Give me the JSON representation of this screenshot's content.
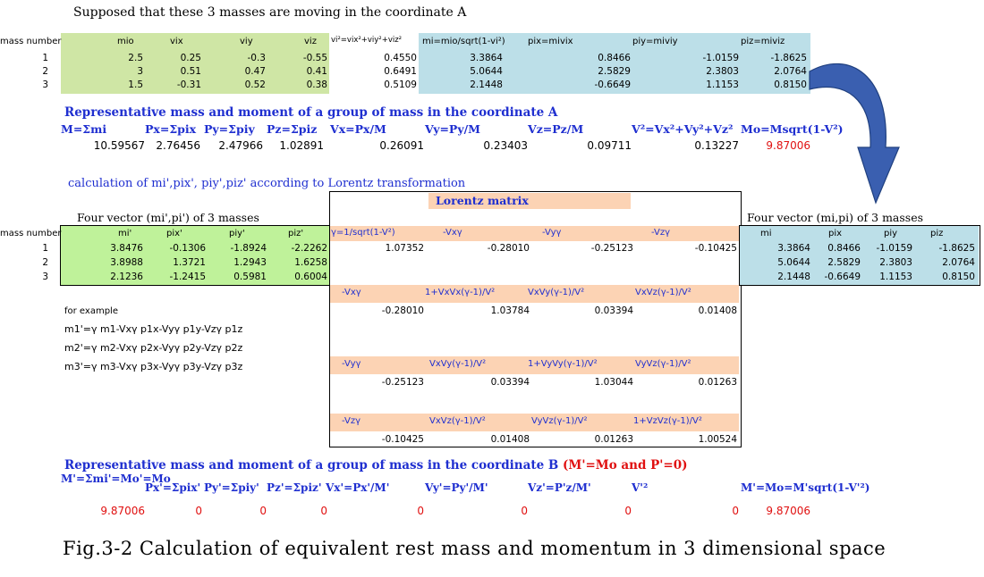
{
  "intro": "Supposed that these 3 masses are moving in the coordinate A",
  "tableA": {
    "mass_number_label": "mass number",
    "headers": [
      "mio",
      "vix",
      "viy",
      "viz",
      "vi²=vix²+viy²+viz²",
      "mi=mio/sqrt(1-vi²)",
      "pix=mivix",
      "piy=miviy",
      "piz=miviz"
    ],
    "rows": [
      {
        "n": "1",
        "mio": "2.5",
        "vix": "0.25",
        "viy": "-0.3",
        "viz": "-0.55",
        "v2": "0.4550",
        "mi": "3.3864",
        "pix": "0.8466",
        "piy": "-1.0159",
        "piz": "-1.8625"
      },
      {
        "n": "2",
        "mio": "3",
        "vix": "0.51",
        "viy": "0.47",
        "viz": "0.41",
        "v2": "0.6491",
        "mi": "5.0644",
        "pix": "2.5829",
        "piy": "2.3803",
        "piz": "2.0764"
      },
      {
        "n": "3",
        "mio": "1.5",
        "vix": "-0.31",
        "viy": "0.52",
        "viz": "0.38",
        "v2": "0.5109",
        "mi": "2.1448",
        "pix": "-0.6649",
        "piy": "1.1153",
        "piz": "0.8150"
      }
    ]
  },
  "repA": {
    "title": "Representative mass and moment of a group of mass in the coordinate A",
    "headers": [
      "M=Σmi",
      "Px=Σpix",
      "Py=Σpiy",
      "Pz=Σpiz",
      "Vx=Px/M",
      "Vy=Py/M",
      "Vz=Pz/M",
      "V²=Vx²+Vy²+Vz²",
      "Mo=Msqrt(1-V²)"
    ],
    "values": [
      "10.59567",
      "2.76456",
      "2.47966",
      "1.02891",
      "0.26091",
      "0.23403",
      "0.09711",
      "0.13227",
      "9.87006"
    ]
  },
  "calc_title": "calculation of mi',pix', piy',piz' according to Lorentz transformation",
  "lorentz_title": "Lorentz matrix",
  "left_fv": {
    "title": "Four vector (mi',pi') of  3 masses",
    "mass_number_label": "mass number",
    "headers": [
      "mi'",
      "pix'",
      "piy'",
      "piz'"
    ],
    "rows": [
      [
        "1",
        "3.8476",
        "-0.1306",
        "-1.8924",
        "-2.2262"
      ],
      [
        "2",
        "3.8988",
        "1.3721",
        "1.2943",
        "1.6258"
      ],
      [
        "3",
        "2.1236",
        "-1.2415",
        "0.5981",
        "0.6004"
      ]
    ]
  },
  "right_fv": {
    "title": "Four vector (mi,pi) of  3 masses",
    "headers": [
      "mi",
      "pix",
      "piy",
      "piz"
    ],
    "rows": [
      [
        "3.3864",
        "0.8466",
        "-1.0159",
        "-1.8625"
      ],
      [
        "5.0644",
        "2.5829",
        "2.3803",
        "2.0764"
      ],
      [
        "2.1448",
        "-0.6649",
        "1.1153",
        "0.8150"
      ]
    ]
  },
  "matrix": [
    {
      "labels": [
        "γ=1/sqrt(1-V²)",
        "-Vxγ",
        "-Vyγ",
        "-Vzγ"
      ],
      "values": [
        "1.07352",
        "-0.28010",
        "-0.25123",
        "-0.10425"
      ]
    },
    {
      "labels": [
        "-Vxγ",
        "1+VxVx(γ-1)/V²",
        "VxVy(γ-1)/V²",
        "VxVz(γ-1)/V²"
      ],
      "values": [
        "-0.28010",
        "1.03784",
        "0.03394",
        "0.01408"
      ]
    },
    {
      "labels": [
        "-Vyγ",
        "VxVy(γ-1)/V²",
        "1+VyVy(γ-1)/V²",
        "VyVz(γ-1)/V²"
      ],
      "values": [
        "-0.25123",
        "0.03394",
        "1.03044",
        "0.01263"
      ]
    },
    {
      "labels": [
        "-Vzγ",
        "VxVz(γ-1)/V²",
        "VyVz(γ-1)/V²",
        "1+VzVz(γ-1)/V²"
      ],
      "values": [
        "-0.10425",
        "0.01408",
        "0.01263",
        "1.00524"
      ]
    }
  ],
  "example": {
    "title": "for example",
    "lines": [
      "m1'=γ m1-Vxγ p1x-Vyγ p1y-Vzγ p1z",
      "m2'=γ m2-Vxγ p2x-Vyγ p2y-Vzγ p2z",
      "m3'=γ m3-Vxγ p3x-Vyγ p3y-Vzγ p3z"
    ]
  },
  "repB": {
    "title": "Representative mass and moment of a group of mass in the coordinate B",
    "title_suffix": "(M'=Mo and P'=0)",
    "headers": [
      "M'=Σmi'=Mo'=Mo",
      "Px'=Σpix'",
      "Py'=Σpiy'",
      "Pz'=Σpiz'",
      "Vx'=Px'/M'",
      "Vy'=Py'/M'",
      "Vz'=P'z/M'",
      "V'²",
      "M'=Mo=M'sqrt(1-V'²)"
    ],
    "values": [
      "9.87006",
      "0",
      "0",
      "0",
      "0",
      "0",
      "0",
      "0",
      "9.87006"
    ]
  },
  "caption": "Fig.3-2 Calculation of equivalent rest mass and momentum in 3 dimensional space",
  "colors": {
    "blue": "#1f2fd0",
    "red": "#e01010",
    "green": "#cfe6a5",
    "lightgreen": "#bff29a",
    "lightblue": "#bcdfe8",
    "peach": "#fcd3b4",
    "arrow": "#3a5fb0"
  }
}
